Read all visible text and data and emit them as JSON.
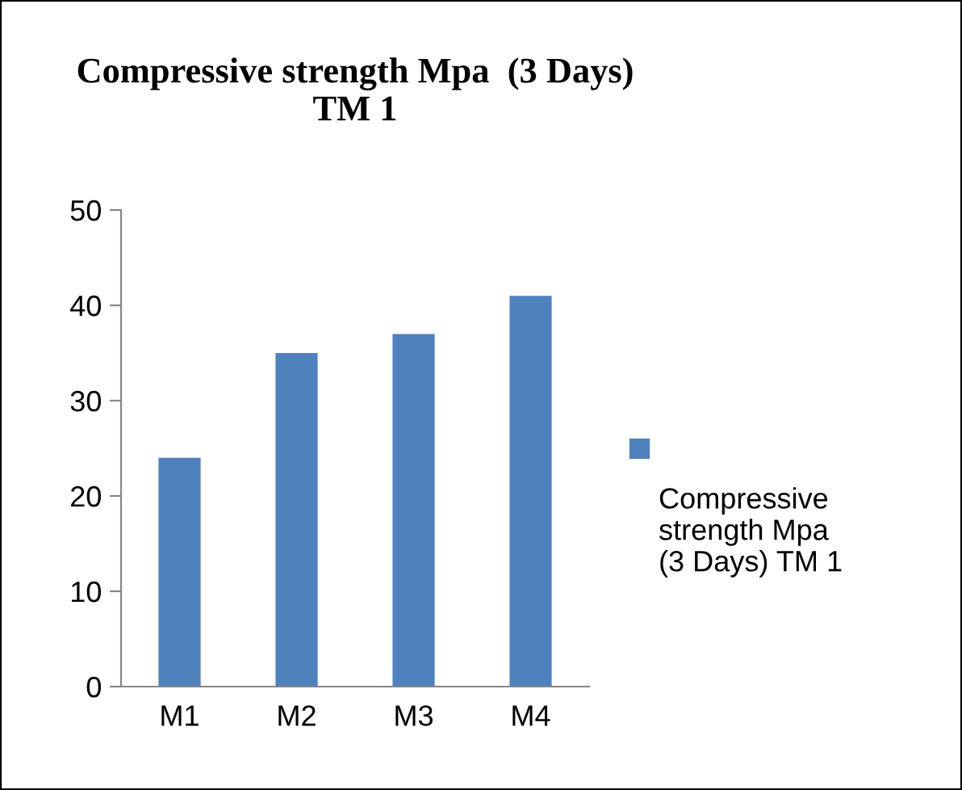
{
  "chart_data": {
    "type": "bar",
    "title": "Compressive strength Mpa  (3 Days)\nTM 1",
    "categories": [
      "M1",
      "M2",
      "M3",
      "M4"
    ],
    "series": [
      {
        "name": "Compressive strength Mpa (3 Days) TM 1",
        "color": "#4f81bd",
        "values": [
          24,
          35,
          37,
          41
        ]
      }
    ],
    "ylim": [
      0,
      50
    ],
    "yticks": [
      0,
      10,
      20,
      30,
      40,
      50
    ],
    "grid": false,
    "legend": "right"
  }
}
